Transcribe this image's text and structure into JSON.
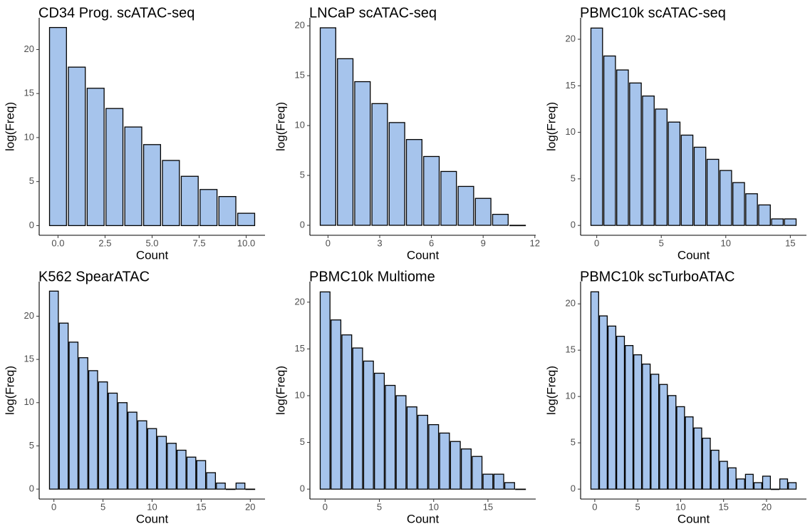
{
  "chart_data": [
    {
      "type": "bar",
      "title": "CD34 Prog. scATAC-seq",
      "xlabel": "Count",
      "ylabel": "log(Freq)",
      "color": "#a6c4ec",
      "edgecolor": "#000000",
      "x": [
        0,
        1,
        2,
        3,
        4,
        5,
        6,
        7,
        8,
        9,
        10
      ],
      "values": [
        22.5,
        18.0,
        15.6,
        13.3,
        11.2,
        9.2,
        7.4,
        5.6,
        4.1,
        3.3,
        1.4
      ],
      "xlim": [
        -1,
        11
      ],
      "ylim": [
        -1.1,
        23.6
      ],
      "xticks": [
        {
          "value": 0,
          "label": "0.0"
        },
        2.5,
        {
          "value": 5,
          "label": "5.0"
        },
        7.5,
        {
          "value": 10,
          "label": "10.0"
        }
      ],
      "yticks": [
        0,
        5,
        10,
        15,
        20
      ]
    },
    {
      "type": "bar",
      "title": "LNCaP scATAC-seq",
      "xlabel": "Count",
      "ylabel": "log(Freq)",
      "color": "#a6c4ec",
      "edgecolor": "#000000",
      "x": [
        0,
        1,
        2,
        3,
        4,
        5,
        6,
        7,
        8,
        9,
        10,
        11
      ],
      "values": [
        19.8,
        16.7,
        14.4,
        12.2,
        10.3,
        8.6,
        6.9,
        5.4,
        3.9,
        2.7,
        1.1,
        0
      ],
      "xlim": [
        -1.05,
        12.05
      ],
      "ylim": [
        -1.0,
        20.8
      ],
      "xticks": [
        0,
        3,
        6,
        9,
        12
      ],
      "yticks": [
        0,
        5,
        10,
        15,
        20
      ]
    },
    {
      "type": "bar",
      "title": "PBMC10k scATAC-seq",
      "xlabel": "Count",
      "ylabel": "log(Freq)",
      "color": "#a6c4ec",
      "edgecolor": "#000000",
      "x": [
        0,
        1,
        2,
        3,
        4,
        5,
        6,
        7,
        8,
        9,
        10,
        11,
        12,
        13,
        14,
        15
      ],
      "values": [
        21.2,
        18.2,
        16.7,
        15.3,
        13.9,
        12.5,
        11.1,
        9.7,
        8.4,
        7.1,
        5.9,
        4.6,
        3.4,
        2.2,
        0.7,
        0.7
      ],
      "xlim": [
        -1.25,
        16.25
      ],
      "ylim": [
        -1.06,
        22.3
      ],
      "xticks": [
        0,
        5,
        10,
        15
      ],
      "yticks": [
        0,
        5,
        10,
        15,
        20
      ]
    },
    {
      "type": "bar",
      "title": "K562 SpearATAC",
      "xlabel": "Count",
      "ylabel": "log(Freq)",
      "color": "#a6c4ec",
      "edgecolor": "#000000",
      "x": [
        0,
        1,
        2,
        3,
        4,
        5,
        6,
        7,
        8,
        9,
        10,
        11,
        12,
        13,
        14,
        15,
        16,
        17,
        18,
        19,
        20
      ],
      "values": [
        22.9,
        19.2,
        17.0,
        15.2,
        13.7,
        12.4,
        11.1,
        10.0,
        8.9,
        7.9,
        7.0,
        6.1,
        5.3,
        4.5,
        3.7,
        3.3,
        1.9,
        0.7,
        0,
        0.7,
        0
      ],
      "xlim": [
        -1.5,
        21.5
      ],
      "ylim": [
        -1.15,
        24.0
      ],
      "xticks": [
        0,
        5,
        10,
        15,
        20
      ],
      "yticks": [
        0,
        5,
        10,
        15,
        20
      ]
    },
    {
      "type": "bar",
      "title": "PBMC10k Multiome",
      "xlabel": "Count",
      "ylabel": "log(Freq)",
      "color": "#a6c4ec",
      "edgecolor": "#000000",
      "x": [
        0,
        1,
        2,
        3,
        4,
        5,
        6,
        7,
        8,
        9,
        10,
        11,
        12,
        13,
        14,
        15,
        16,
        17,
        18
      ],
      "values": [
        21.1,
        18.1,
        16.5,
        15.1,
        13.7,
        12.4,
        11.1,
        10.0,
        8.8,
        7.9,
        6.9,
        6.0,
        5.1,
        4.3,
        3.5,
        1.6,
        1.6,
        0.7,
        0
      ],
      "xlim": [
        -1.4,
        19.4
      ],
      "ylim": [
        -1.06,
        22.2
      ],
      "xticks": [
        0,
        5,
        10,
        15
      ],
      "yticks": [
        0,
        5,
        10,
        15,
        20
      ]
    },
    {
      "type": "bar",
      "title": "PBMC10k scTurboATAC",
      "xlabel": "Count",
      "ylabel": "log(Freq)",
      "color": "#a6c4ec",
      "edgecolor": "#000000",
      "x": [
        0,
        1,
        2,
        3,
        4,
        5,
        6,
        7,
        8,
        9,
        10,
        11,
        12,
        13,
        14,
        15,
        16,
        17,
        18,
        19,
        20,
        21,
        22,
        23
      ],
      "values": [
        21.3,
        18.7,
        17.6,
        16.5,
        15.5,
        14.5,
        13.5,
        12.4,
        11.3,
        10.1,
        8.9,
        7.8,
        6.6,
        5.5,
        4.2,
        3.0,
        2.3,
        1.1,
        1.6,
        0.7,
        1.4,
        0,
        1.1,
        0.7
      ],
      "xlim": [
        -1.65,
        24.65
      ],
      "ylim": [
        -1.07,
        22.4
      ],
      "xticks": [
        0,
        5,
        10,
        15,
        20
      ],
      "yticks": [
        0,
        5,
        10,
        15,
        20
      ]
    }
  ]
}
